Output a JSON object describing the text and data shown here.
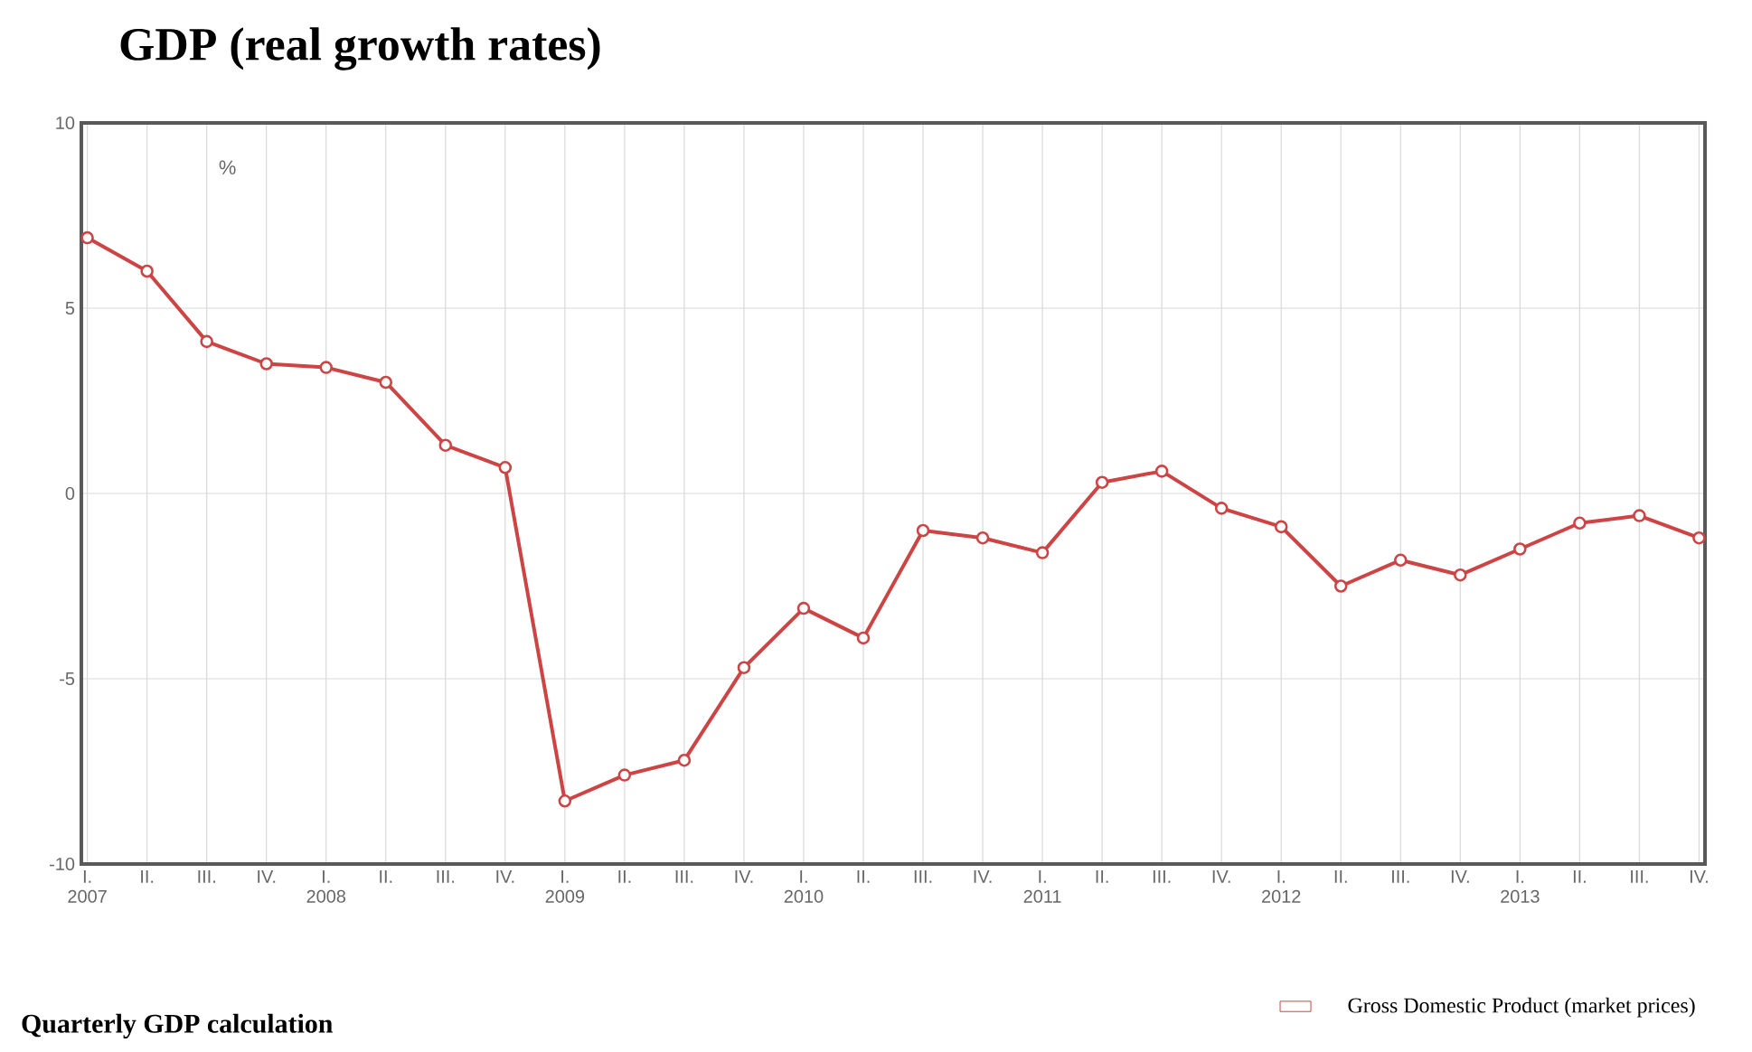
{
  "chart_data": {
    "type": "line",
    "title": "GDP (real growth rates)",
    "ylabel": "%",
    "categories": [
      "I. 2007",
      "II.",
      "III.",
      "IV.",
      "I. 2008",
      "II.",
      "III.",
      "IV.",
      "I. 2009",
      "II.",
      "III.",
      "IV.",
      "I. 2010",
      "II.",
      "III.",
      "IV.",
      "I. 2011",
      "II.",
      "III.",
      "IV.",
      "I. 2012",
      "II.",
      "III.",
      "IV.",
      "I. 2013",
      "II.",
      "III.",
      "IV."
    ],
    "series": [
      {
        "name": "Gross Domestic Product (market prices)",
        "color": "#cc4444",
        "values": [
          6.9,
          6.0,
          4.1,
          3.5,
          3.4,
          3.0,
          1.3,
          0.7,
          -8.3,
          -7.6,
          -7.2,
          -4.7,
          -3.1,
          -3.9,
          -1.0,
          -1.2,
          -1.6,
          0.3,
          0.6,
          -0.4,
          -0.9,
          -2.5,
          -1.8,
          -2.2,
          -1.5,
          -0.8,
          -0.6,
          -1.2
        ]
      }
    ],
    "ylim": [
      -10,
      10
    ],
    "yticks": [
      -10,
      -5,
      0,
      5,
      10
    ],
    "grid": true,
    "marker": "circle",
    "line_style": "solid",
    "legend": "bottom right",
    "annotations": [
      "Quarterly GDP calculation"
    ]
  }
}
